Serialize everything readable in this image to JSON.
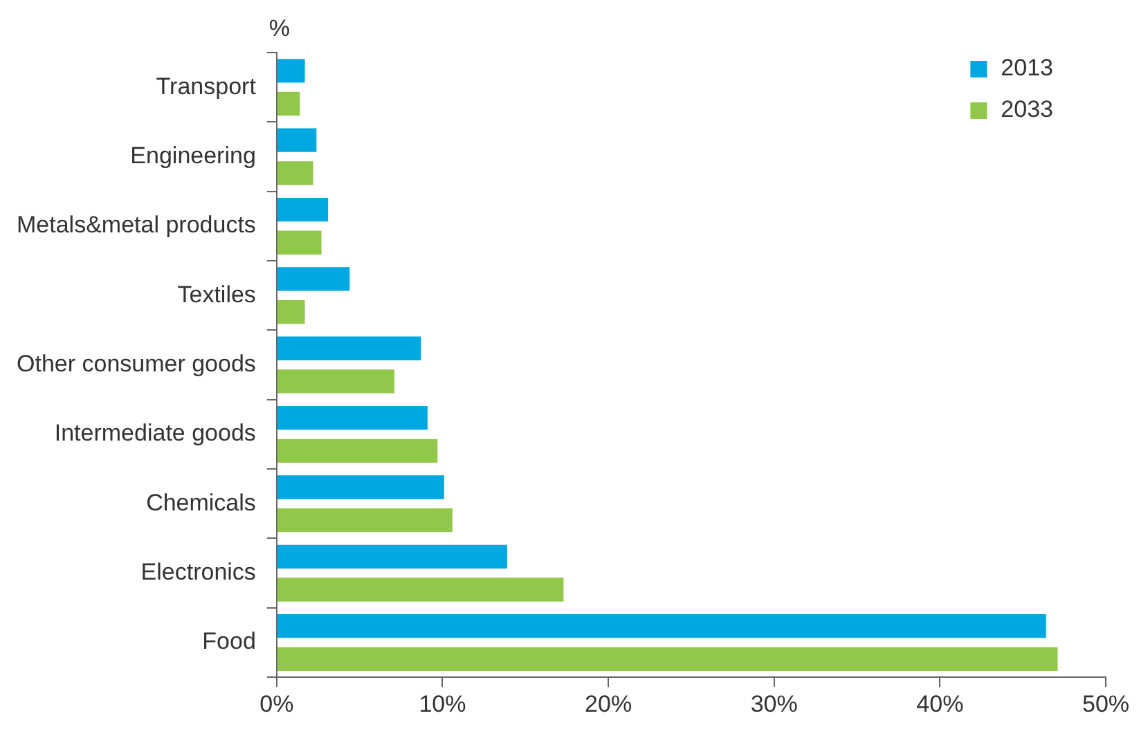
{
  "chart_data": {
    "type": "bar",
    "orientation": "horizontal",
    "ylabel": "%",
    "categories": [
      "Transport",
      "Engineering",
      "Metals&metal products",
      "Textiles",
      "Other consumer goods",
      "Intermediate goods",
      "Chemicals",
      "Electronics",
      "Food"
    ],
    "series": [
      {
        "name": "2013",
        "color": "#00a8e1",
        "values": [
          1.7,
          2.4,
          3.1,
          4.4,
          8.7,
          9.1,
          10.1,
          13.9,
          46.4
        ]
      },
      {
        "name": "2033",
        "color": "#92c84a",
        "values": [
          1.4,
          2.2,
          2.7,
          1.7,
          7.1,
          9.7,
          10.6,
          17.3,
          47.1
        ]
      }
    ],
    "xlim": [
      0,
      50
    ],
    "xticks": [
      {
        "value": 0,
        "label": "0%"
      },
      {
        "value": 10,
        "label": "10%"
      },
      {
        "value": 20,
        "label": "20%"
      },
      {
        "value": 30,
        "label": "30%"
      },
      {
        "value": 40,
        "label": "40%"
      },
      {
        "value": 50,
        "label": "50%"
      }
    ],
    "grid": false,
    "legend": "top right"
  }
}
